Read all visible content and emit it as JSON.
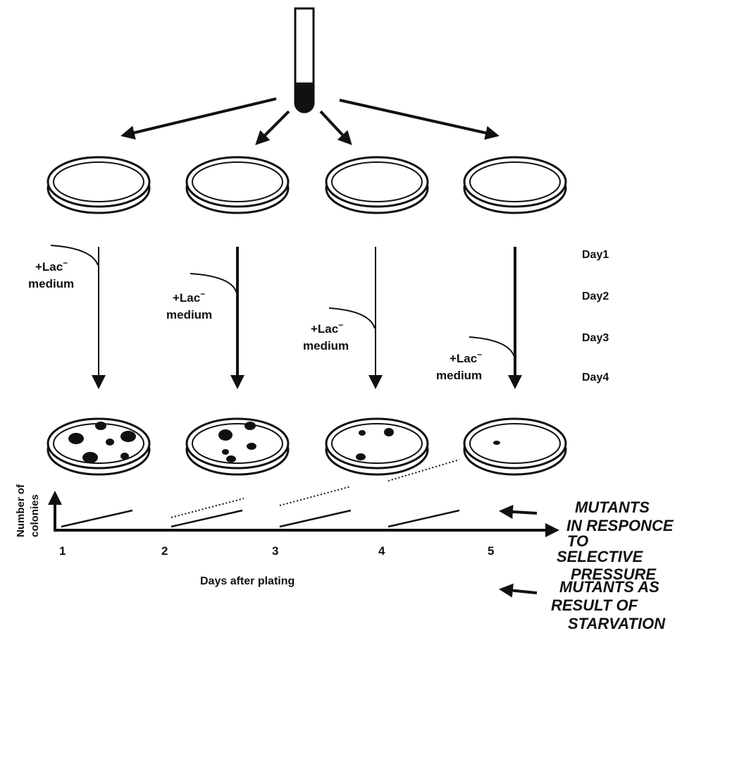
{
  "plates": [
    {
      "medium_label_line1": "+Lac",
      "medium_label_sup": "−",
      "medium_label_line2": "medium",
      "colony_count": 6
    },
    {
      "medium_label_line1": "+Lac",
      "medium_label_sup": "−",
      "medium_label_line2": "medium",
      "colony_count": 5
    },
    {
      "medium_label_line1": "+Lac",
      "medium_label_sup": "−",
      "medium_label_line2": "medium",
      "colony_count": 3
    },
    {
      "medium_label_line1": "+Lac",
      "medium_label_sup": "−",
      "medium_label_line2": "medium",
      "colony_count": 1
    }
  ],
  "days": [
    "Day1",
    "Day2",
    "Day3",
    "Day4"
  ],
  "graph": {
    "ylabel_line1": "Number of",
    "ylabel_line2": "colonies",
    "xlabel": "Days after plating",
    "xticks": [
      "1",
      "2",
      "3",
      "4",
      "5"
    ]
  },
  "annotations": {
    "starvation": [
      "MUTANTS  AS",
      "RESULT  OF",
      "STARVATION"
    ],
    "selective": [
      "MUTANTS",
      "IN  RESPONCE",
      "TO",
      "SELECTIVE",
      "PRESSURE"
    ]
  }
}
